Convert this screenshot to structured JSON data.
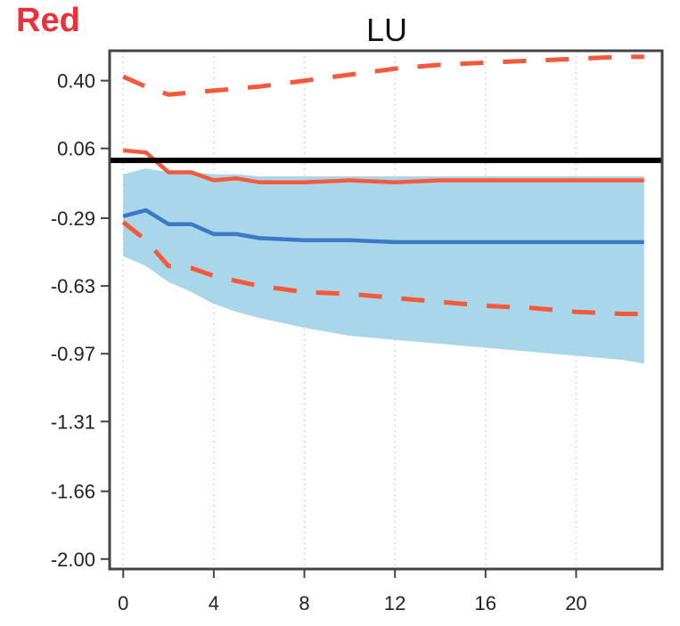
{
  "corner_label": "Red",
  "colors": {
    "band": "#a9d6e8",
    "median": "#3b78c8",
    "red": "#f4593c",
    "zero": "#000000",
    "frame": "#444444",
    "grid": "#d8d8d8",
    "corner_label": "#e8323c"
  },
  "chart_data": {
    "type": "line",
    "title": "LU",
    "xlabel": "",
    "ylabel": "",
    "xlim": [
      -0.6,
      23.8
    ],
    "ylim": [
      -2.05,
      0.55
    ],
    "yticks": [
      0.4,
      0.06,
      -0.29,
      -0.63,
      -0.97,
      -1.31,
      -1.66,
      -2.0
    ],
    "ytick_labels": [
      "0.40",
      "0.06",
      "-0.29",
      "-0.63",
      "-0.97",
      "-1.31",
      "-1.66",
      "-2.00"
    ],
    "xticks": [
      0,
      4,
      8,
      12,
      16,
      20
    ],
    "xtick_labels": [
      "0",
      "4",
      "8",
      "12",
      "16",
      "20"
    ],
    "grid": "vertical-dotted",
    "zero_line": 0,
    "band": {
      "name": "blue interval",
      "x": [
        0,
        1,
        2,
        3,
        4,
        5,
        6,
        8,
        10,
        12,
        14,
        16,
        18,
        20,
        22,
        23
      ],
      "upper": [
        -0.07,
        -0.04,
        -0.06,
        -0.06,
        -0.07,
        -0.07,
        -0.08,
        -0.08,
        -0.08,
        -0.08,
        -0.08,
        -0.08,
        -0.08,
        -0.08,
        -0.08,
        -0.08
      ],
      "lower": [
        -0.48,
        -0.53,
        -0.61,
        -0.66,
        -0.72,
        -0.76,
        -0.79,
        -0.84,
        -0.88,
        -0.9,
        -0.92,
        -0.94,
        -0.96,
        -0.98,
        -1.0,
        -1.02
      ]
    },
    "series": [
      {
        "name": "blue median",
        "style": "solid",
        "x": [
          0,
          1,
          2,
          3,
          4,
          5,
          6,
          8,
          10,
          12,
          14,
          16,
          18,
          20,
          22,
          23
        ],
        "values": [
          -0.28,
          -0.25,
          -0.32,
          -0.32,
          -0.37,
          -0.37,
          -0.39,
          -0.4,
          -0.4,
          -0.41,
          -0.41,
          -0.41,
          -0.41,
          -0.41,
          -0.41,
          -0.41
        ]
      },
      {
        "name": "red upper solid",
        "style": "solid",
        "x": [
          0,
          1,
          2,
          3,
          4,
          5,
          6,
          8,
          10,
          12,
          14,
          16,
          18,
          20,
          22,
          23
        ],
        "values": [
          0.05,
          0.04,
          -0.06,
          -0.06,
          -0.1,
          -0.09,
          -0.11,
          -0.11,
          -0.1,
          -0.11,
          -0.1,
          -0.1,
          -0.1,
          -0.1,
          -0.1,
          -0.1
        ]
      },
      {
        "name": "red upper dashed",
        "style": "dashed",
        "x": [
          0,
          1,
          2,
          3,
          4,
          6,
          8,
          10,
          12,
          14,
          16,
          18,
          20,
          22,
          23
        ],
        "values": [
          0.42,
          0.37,
          0.33,
          0.34,
          0.35,
          0.37,
          0.4,
          0.43,
          0.46,
          0.48,
          0.49,
          0.5,
          0.51,
          0.52,
          0.52
        ]
      },
      {
        "name": "red lower dashed",
        "style": "dashed",
        "x": [
          0,
          1,
          2,
          3,
          4,
          6,
          8,
          10,
          12,
          14,
          16,
          18,
          20,
          22,
          23
        ],
        "values": [
          -0.31,
          -0.4,
          -0.53,
          -0.54,
          -0.58,
          -0.63,
          -0.66,
          -0.67,
          -0.69,
          -0.71,
          -0.73,
          -0.74,
          -0.76,
          -0.77,
          -0.77
        ]
      }
    ]
  }
}
